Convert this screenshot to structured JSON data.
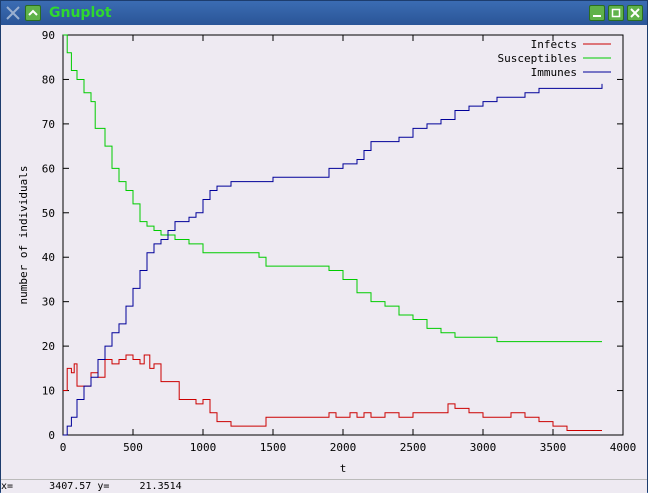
{
  "window": {
    "title": "Gnuplot"
  },
  "statusbar": {
    "x_label": "x=",
    "x_value": "3407.57",
    "y_label": "y=",
    "y_value": "21.3514"
  },
  "colors": {
    "infects": "#cc0000",
    "susceptibles": "#00cc00",
    "immunes": "#000099",
    "title_text": "#2fd82f",
    "titlebar": "#2f5a9a",
    "background": "#eeeaf2"
  },
  "chart_data": {
    "type": "line",
    "title": "",
    "xlabel": "t",
    "ylabel": "number of individuals",
    "xlim": [
      0,
      4000
    ],
    "ylim": [
      0,
      90
    ],
    "xticks": [
      0,
      500,
      1000,
      1500,
      2000,
      2500,
      3000,
      3500,
      4000
    ],
    "yticks": [
      0,
      10,
      20,
      30,
      40,
      50,
      60,
      70,
      80,
      90
    ],
    "legend_position": "top-right",
    "series": [
      {
        "name": "Infects",
        "color": "#cc0000",
        "points": [
          [
            0,
            10
          ],
          [
            30,
            15
          ],
          [
            60,
            14
          ],
          [
            80,
            16
          ],
          [
            100,
            11
          ],
          [
            150,
            11
          ],
          [
            200,
            14
          ],
          [
            250,
            13
          ],
          [
            300,
            17
          ],
          [
            350,
            16
          ],
          [
            400,
            17
          ],
          [
            450,
            18
          ],
          [
            500,
            17
          ],
          [
            550,
            16
          ],
          [
            580,
            18
          ],
          [
            620,
            15
          ],
          [
            650,
            16
          ],
          [
            700,
            12
          ],
          [
            750,
            12
          ],
          [
            800,
            12
          ],
          [
            830,
            8
          ],
          [
            900,
            8
          ],
          [
            950,
            7
          ],
          [
            1000,
            8
          ],
          [
            1050,
            5
          ],
          [
            1100,
            3
          ],
          [
            1200,
            2
          ],
          [
            1300,
            2
          ],
          [
            1400,
            2
          ],
          [
            1450,
            4
          ],
          [
            1550,
            4
          ],
          [
            1700,
            4
          ],
          [
            1850,
            4
          ],
          [
            1900,
            5
          ],
          [
            1950,
            4
          ],
          [
            2000,
            4
          ],
          [
            2050,
            5
          ],
          [
            2100,
            4
          ],
          [
            2150,
            5
          ],
          [
            2200,
            4
          ],
          [
            2300,
            5
          ],
          [
            2400,
            4
          ],
          [
            2500,
            5
          ],
          [
            2600,
            5
          ],
          [
            2700,
            5
          ],
          [
            2750,
            7
          ],
          [
            2800,
            6
          ],
          [
            2900,
            5
          ],
          [
            3000,
            4
          ],
          [
            3100,
            4
          ],
          [
            3200,
            5
          ],
          [
            3300,
            4
          ],
          [
            3400,
            3
          ],
          [
            3500,
            2
          ],
          [
            3600,
            1
          ],
          [
            3700,
            1
          ],
          [
            3850,
            1
          ]
        ]
      },
      {
        "name": "Susceptibles",
        "color": "#00cc00",
        "points": [
          [
            0,
            90
          ],
          [
            30,
            86
          ],
          [
            60,
            82
          ],
          [
            100,
            80
          ],
          [
            150,
            77
          ],
          [
            200,
            75
          ],
          [
            230,
            69
          ],
          [
            300,
            65
          ],
          [
            350,
            60
          ],
          [
            400,
            57
          ],
          [
            450,
            55
          ],
          [
            500,
            52
          ],
          [
            550,
            48
          ],
          [
            600,
            47
          ],
          [
            650,
            46
          ],
          [
            700,
            45
          ],
          [
            800,
            44
          ],
          [
            900,
            43
          ],
          [
            1000,
            41
          ],
          [
            1100,
            41
          ],
          [
            1200,
            41
          ],
          [
            1400,
            40
          ],
          [
            1450,
            38
          ],
          [
            1600,
            38
          ],
          [
            1800,
            38
          ],
          [
            1900,
            37
          ],
          [
            2000,
            35
          ],
          [
            2100,
            32
          ],
          [
            2200,
            30
          ],
          [
            2300,
            29
          ],
          [
            2400,
            27
          ],
          [
            2500,
            26
          ],
          [
            2600,
            24
          ],
          [
            2700,
            23
          ],
          [
            2800,
            22
          ],
          [
            2900,
            22
          ],
          [
            3000,
            22
          ],
          [
            3100,
            21
          ],
          [
            3300,
            21
          ],
          [
            3500,
            21
          ],
          [
            3850,
            21
          ]
        ]
      },
      {
        "name": "Immunes",
        "color": "#000099",
        "points": [
          [
            0,
            0
          ],
          [
            30,
            2
          ],
          [
            60,
            4
          ],
          [
            100,
            8
          ],
          [
            150,
            11
          ],
          [
            200,
            13
          ],
          [
            250,
            17
          ],
          [
            300,
            20
          ],
          [
            350,
            23
          ],
          [
            400,
            25
          ],
          [
            450,
            29
          ],
          [
            500,
            33
          ],
          [
            550,
            37
          ],
          [
            600,
            41
          ],
          [
            650,
            43
          ],
          [
            700,
            44
          ],
          [
            750,
            46
          ],
          [
            800,
            48
          ],
          [
            850,
            48
          ],
          [
            900,
            49
          ],
          [
            950,
            50
          ],
          [
            1000,
            53
          ],
          [
            1050,
            55
          ],
          [
            1100,
            56
          ],
          [
            1200,
            57
          ],
          [
            1300,
            57
          ],
          [
            1400,
            57
          ],
          [
            1500,
            58
          ],
          [
            1600,
            58
          ],
          [
            1700,
            58
          ],
          [
            1800,
            58
          ],
          [
            1900,
            60
          ],
          [
            2000,
            61
          ],
          [
            2100,
            62
          ],
          [
            2150,
            64
          ],
          [
            2200,
            66
          ],
          [
            2300,
            66
          ],
          [
            2400,
            67
          ],
          [
            2500,
            69
          ],
          [
            2600,
            70
          ],
          [
            2700,
            71
          ],
          [
            2800,
            73
          ],
          [
            2900,
            74
          ],
          [
            3000,
            75
          ],
          [
            3100,
            76
          ],
          [
            3200,
            76
          ],
          [
            3300,
            77
          ],
          [
            3400,
            78
          ],
          [
            3500,
            78
          ],
          [
            3600,
            78
          ],
          [
            3700,
            78
          ],
          [
            3850,
            79
          ]
        ]
      }
    ]
  }
}
